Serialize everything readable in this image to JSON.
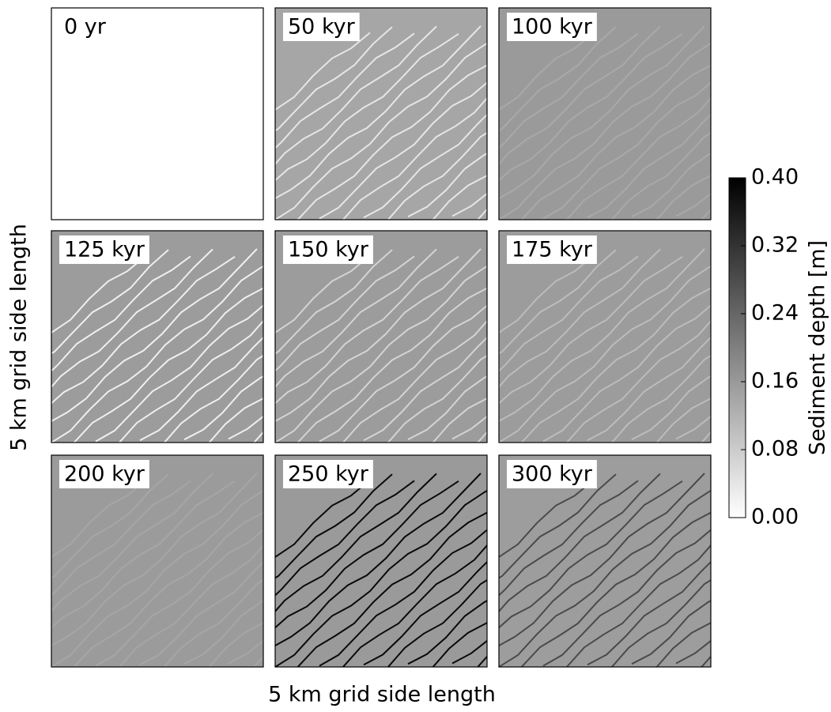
{
  "chart_data": {
    "type": "heatmap-grid",
    "xlabel": "5 km grid side length",
    "ylabel": "5 km grid side length",
    "panels": [
      {
        "name": "0 yr",
        "color": "#ffffff",
        "streak_color": "#ffffff"
      },
      {
        "name": "50 kyr",
        "color": "#a6a6a6",
        "streak_color": "#e6e6e6"
      },
      {
        "name": "100 kyr",
        "color": "#9a9a9a",
        "streak_color": "#a9a9a9"
      },
      {
        "name": "125 kyr",
        "color": "#9c9c9c",
        "streak_color": "#efefef"
      },
      {
        "name": "150 kyr",
        "color": "#9c9c9c",
        "streak_color": "#d4d4d4"
      },
      {
        "name": "175 kyr",
        "color": "#9c9c9c",
        "streak_color": "#bcbcbc"
      },
      {
        "name": "200 kyr",
        "color": "#9b9b9b",
        "streak_color": "#a6a6a6"
      },
      {
        "name": "250 kyr",
        "color": "#9a9a9a",
        "streak_color": "#0a0a0a"
      },
      {
        "name": "300 kyr",
        "color": "#9d9d9d",
        "streak_color": "#4a4a4a"
      }
    ],
    "colorbar": {
      "label": "Sediment depth [m]",
      "clim": [
        0,
        0.4
      ],
      "ticks": [
        {
          "value": 0,
          "label": "0.00"
        },
        {
          "value": 0.08,
          "label": "0.08"
        },
        {
          "value": 0.16,
          "label": "0.16"
        },
        {
          "value": 0.24,
          "label": "0.24"
        },
        {
          "value": 0.32,
          "label": "0.32"
        },
        {
          "value": 0.4,
          "label": "0.40"
        }
      ]
    }
  }
}
